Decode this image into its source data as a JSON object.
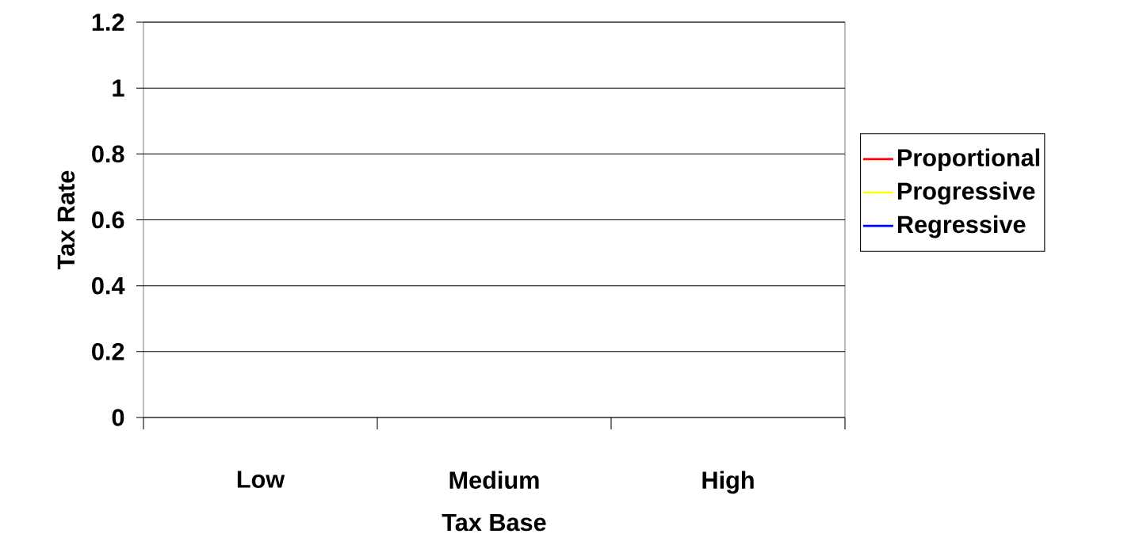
{
  "chart_data": {
    "type": "line",
    "xlabel": "Tax Base",
    "ylabel": "Tax Rate",
    "categories": [
      "Low",
      "Medium",
      "High"
    ],
    "series": [
      {
        "name": "Proportional",
        "color": "#ff0000",
        "values": [
          null,
          null,
          null
        ]
      },
      {
        "name": "Progressive",
        "color": "#ffff00",
        "values": [
          null,
          null,
          null
        ]
      },
      {
        "name": "Regressive",
        "color": "#0000ff",
        "values": [
          null,
          null,
          null
        ]
      }
    ],
    "ylim": [
      0,
      1.2
    ],
    "yticks": [
      0,
      0.2,
      0.4,
      0.6,
      0.8,
      1,
      1.2
    ],
    "grid": "y",
    "legend": "right"
  }
}
